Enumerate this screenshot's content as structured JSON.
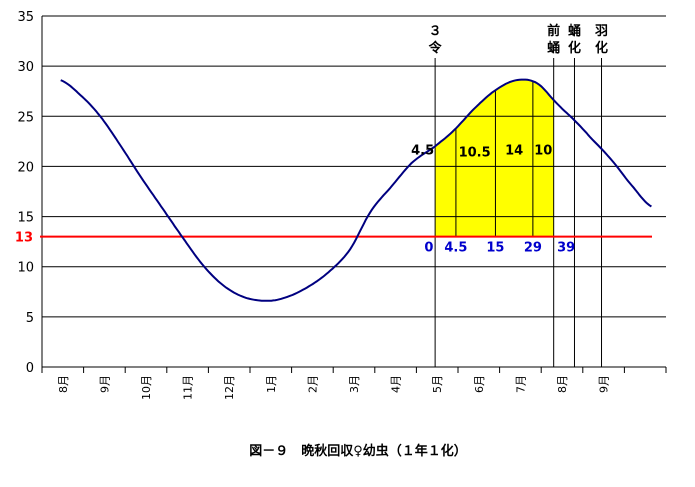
{
  "chart_data": {
    "type": "line",
    "title": "図－９　晩秋回収♀幼虫（１年１化）",
    "ylim": [
      0,
      35
    ],
    "yticks": [
      0,
      5,
      10,
      15,
      20,
      25,
      30,
      35
    ],
    "ytick_labels": [
      "0",
      "5",
      "10",
      "15",
      "20",
      "25",
      "30",
      "35"
    ],
    "xlim": [
      0,
      15
    ],
    "xticks": [
      0.5,
      1.5,
      2.5,
      3.5,
      4.5,
      5.5,
      6.5,
      7.5,
      8.5,
      9.5,
      10.5,
      11.5,
      12.5,
      13.5
    ],
    "xtick_labels": [
      "8月",
      "9月",
      "10月",
      "11月",
      "12月",
      "1月",
      "2月",
      "3月",
      "4月",
      "5月",
      "6月",
      "7月",
      "8月",
      "9月"
    ],
    "grid": "horizontal",
    "series": [
      {
        "x": [
          0.45,
          0.9,
          1.4,
          1.9,
          2.4,
          2.9,
          3.4,
          3.9,
          4.4,
          4.9,
          5.45,
          5.9,
          6.4,
          6.9,
          7.4,
          7.9,
          8.4,
          8.9,
          9.45,
          9.9,
          10.4,
          10.9,
          11.4,
          11.9,
          12.4,
          12.8,
          13.2,
          13.7,
          14.2,
          14.65
        ],
        "values": [
          28.6,
          27.2,
          25.0,
          22.0,
          18.8,
          15.8,
          12.8,
          10.0,
          8.0,
          6.9,
          6.6,
          7.0,
          8.0,
          9.5,
          11.7,
          15.5,
          18.0,
          20.4,
          22.0,
          23.6,
          25.8,
          27.6,
          28.6,
          28.3,
          26.2,
          24.6,
          22.8,
          20.6,
          18.0,
          16.0
        ]
      }
    ],
    "threshold": {
      "value": 13,
      "label": "13"
    },
    "shaded_region": {
      "x_start": 9.45,
      "x_end": 12.3
    },
    "vertical_markers": [
      {
        "x": 9.45,
        "label_lines": [
          "３",
          "令"
        ]
      },
      {
        "x": 12.3,
        "label_lines": [
          "前",
          "蛹"
        ]
      },
      {
        "x": 12.8,
        "label_lines": [
          "蛹",
          "化"
        ]
      },
      {
        "x": 13.45,
        "label_lines": [
          "羽",
          "化"
        ]
      }
    ],
    "shade_dividers": [
      9.95,
      10.9,
      11.8
    ],
    "segment_labels": [
      {
        "x": 9.15,
        "y": 20.4,
        "text": "4.5"
      },
      {
        "x": 10.4,
        "y": 20.2,
        "text": "10.5"
      },
      {
        "x": 11.35,
        "y": 20.4,
        "text": "14"
      },
      {
        "x": 12.05,
        "y": 20.4,
        "text": "10"
      }
    ],
    "cumulative_labels": [
      {
        "x": 9.3,
        "text": "0"
      },
      {
        "x": 9.95,
        "text": "4.5"
      },
      {
        "x": 10.9,
        "text": "15"
      },
      {
        "x": 11.8,
        "text": "29"
      },
      {
        "x": 12.6,
        "text": "39"
      }
    ]
  },
  "colors": {
    "curve": "#000080",
    "threshold": "#ff0000",
    "shade": "#ffff00",
    "cumulative_text": "#0000cc",
    "grid": "#000000"
  }
}
